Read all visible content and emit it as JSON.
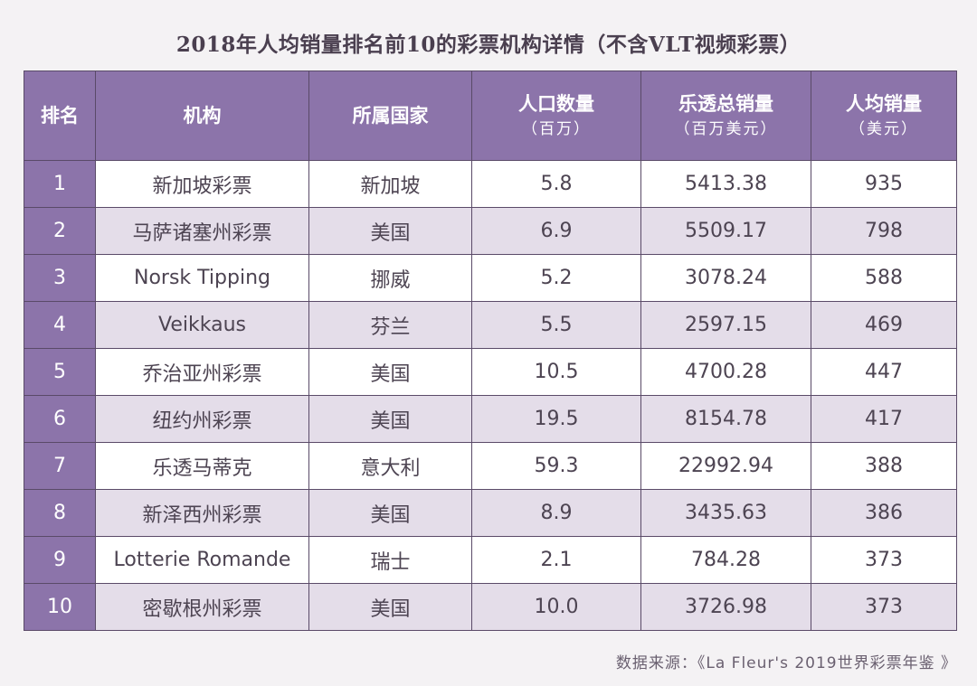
{
  "title": "2018年人均销量排名前10的彩票机构详情（不含VLT视频彩票）",
  "headers": {
    "rank": "排名",
    "org": "机构",
    "country": "所属国家",
    "population": "人口数量",
    "population_unit": "（百万）",
    "sales": "乐透总销量",
    "sales_unit": "（百万美元）",
    "per_capita": "人均销量",
    "per_capita_unit": "（美元）"
  },
  "rows": [
    {
      "rank": "1",
      "org": "新加坡彩票",
      "country": "新加坡",
      "population": "5.8",
      "sales": "5413.38",
      "per_capita": "935"
    },
    {
      "rank": "2",
      "org": "马萨诸塞州彩票",
      "country": "美国",
      "population": "6.9",
      "sales": "5509.17",
      "per_capita": "798"
    },
    {
      "rank": "3",
      "org": "Norsk Tipping",
      "country": "挪威",
      "population": "5.2",
      "sales": "3078.24",
      "per_capita": "588"
    },
    {
      "rank": "4",
      "org": "Veikkaus",
      "country": "芬兰",
      "population": "5.5",
      "sales": "2597.15",
      "per_capita": "469"
    },
    {
      "rank": "5",
      "org": "乔治亚州彩票",
      "country": "美国",
      "population": "10.5",
      "sales": "4700.28",
      "per_capita": "447"
    },
    {
      "rank": "6",
      "org": "纽约州彩票",
      "country": "美国",
      "population": "19.5",
      "sales": "8154.78",
      "per_capita": "417"
    },
    {
      "rank": "7",
      "org": "乐透马蒂克",
      "country": "意大利",
      "population": "59.3",
      "sales": "22992.94",
      "per_capita": "388"
    },
    {
      "rank": "8",
      "org": "新泽西州彩票",
      "country": "美国",
      "population": "8.9",
      "sales": "3435.63",
      "per_capita": "386"
    },
    {
      "rank": "9",
      "org": "Lotterie Romande",
      "country": "瑞士",
      "population": "2.1",
      "sales": "784.28",
      "per_capita": "373"
    },
    {
      "rank": "10",
      "org": "密歇根州彩票",
      "country": "美国",
      "population": "10.0",
      "sales": "3726.98",
      "per_capita": "373"
    }
  ],
  "source": "数据来源：《La Fleur's 2019世界彩票年鉴 》",
  "colors": {
    "header_purple": "#8c74aa",
    "row_stripe": "#e4dde9",
    "background": "#f4f2f4"
  }
}
